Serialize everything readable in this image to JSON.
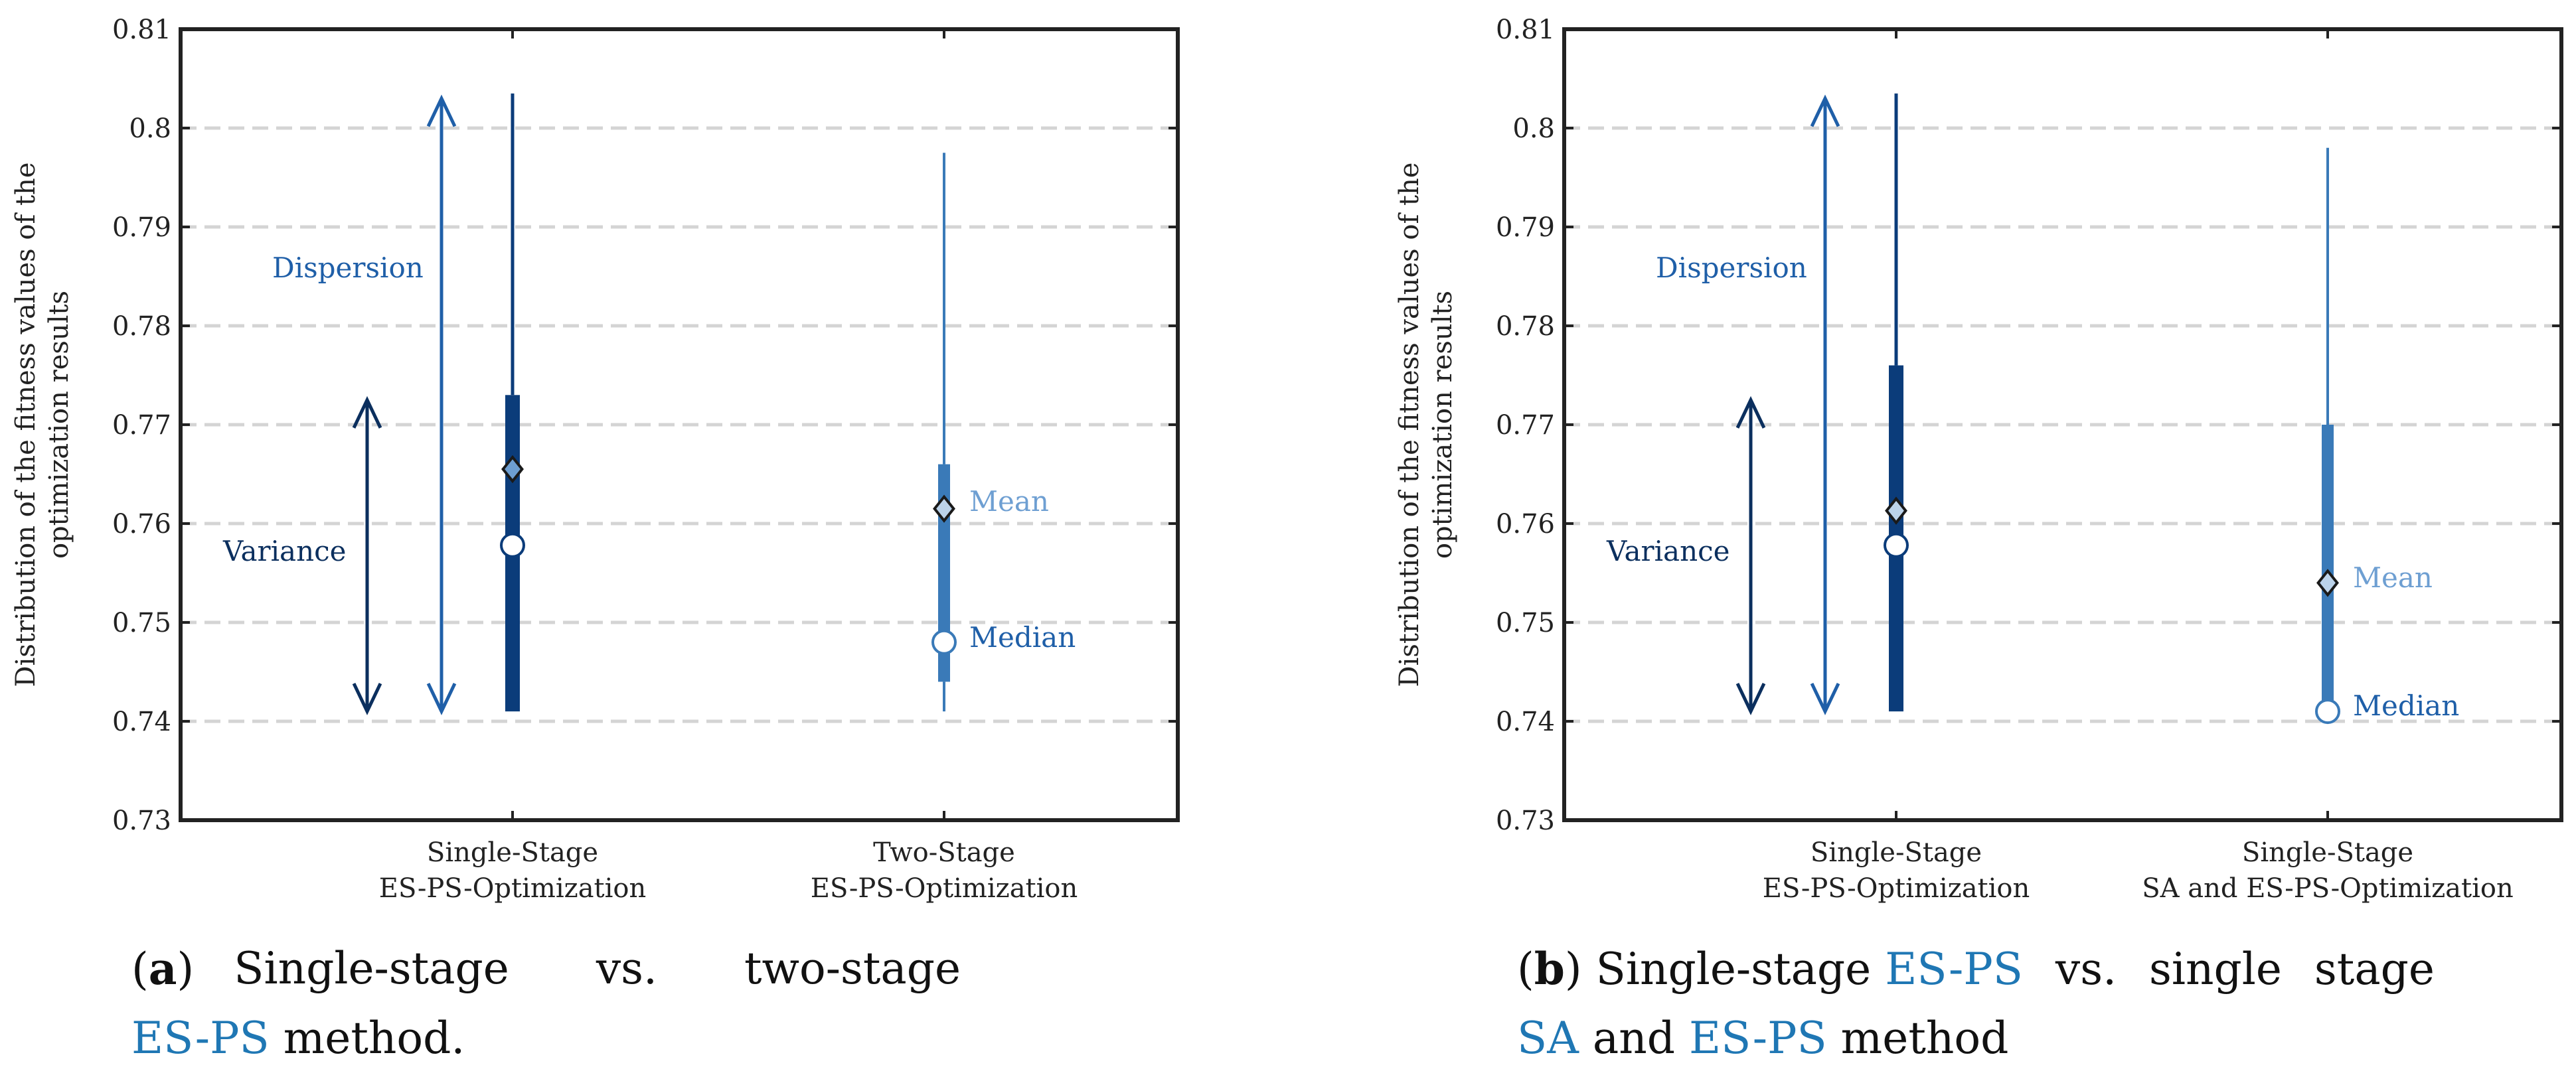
{
  "chart_data": [
    {
      "type": "boxplot",
      "panel": "a",
      "ylabel": [
        "Distribution of the fitness values of the",
        "optimization results"
      ],
      "ylim": [
        0.73,
        0.81
      ],
      "yticks": [
        "0.73",
        "0.74",
        "0.75",
        "0.76",
        "0.77",
        "0.78",
        "0.79",
        "0.8",
        "0.81"
      ],
      "ytick_values": [
        0.73,
        0.74,
        0.75,
        0.76,
        0.77,
        0.78,
        0.79,
        0.8,
        0.81
      ],
      "grid": "horizontal dashed",
      "categories": [
        [
          "Single-Stage",
          "ES-PS-Optimization"
        ],
        [
          "Two-Stage",
          "ES-PS-Optimization"
        ]
      ],
      "boxes": [
        {
          "whisker_low": 0.741,
          "q1": 0.741,
          "q3": 0.773,
          "whisker_high": 0.8035,
          "median": 0.7578,
          "mean": 0.7655,
          "color": "#0b3c7a",
          "mean_color": "#6e9fd2"
        },
        {
          "whisker_low": 0.741,
          "q1": 0.744,
          "q3": 0.766,
          "whisker_high": 0.7975,
          "median": 0.748,
          "mean": 0.7615,
          "color": "#3a7ab8",
          "mean_color": "#bcd3ea"
        }
      ],
      "annotations": {
        "dispersion": {
          "label": "Dispersion",
          "from": 0.741,
          "to": 0.803
        },
        "variance": {
          "label": "Variance",
          "from": 0.741,
          "to": 0.7725
        },
        "mean_label": "Mean",
        "median_label": "Median"
      }
    },
    {
      "type": "boxplot",
      "panel": "b",
      "ylabel": [
        "Distribution of the fitness values of the",
        "optimization results"
      ],
      "ylim": [
        0.73,
        0.81
      ],
      "yticks": [
        "0.73",
        "0.74",
        "0.75",
        "0.76",
        "0.77",
        "0.78",
        "0.79",
        "0.8",
        "0.81"
      ],
      "ytick_values": [
        0.73,
        0.74,
        0.75,
        0.76,
        0.77,
        0.78,
        0.79,
        0.8,
        0.81
      ],
      "grid": "horizontal dashed",
      "categories": [
        [
          "Single-Stage",
          "ES-PS-Optimization"
        ],
        [
          "Single-Stage",
          "SA and ES-PS-Optimization"
        ]
      ],
      "boxes": [
        {
          "whisker_low": 0.741,
          "q1": 0.741,
          "q3": 0.776,
          "whisker_high": 0.8035,
          "median": 0.7578,
          "mean": 0.7613,
          "color": "#0b3c7a",
          "mean_color": "#bcd3ea"
        },
        {
          "whisker_low": 0.741,
          "q1": 0.741,
          "q3": 0.77,
          "whisker_high": 0.798,
          "median": 0.741,
          "mean": 0.754,
          "color": "#3a7ab8",
          "mean_color": "#bcd3ea"
        }
      ],
      "annotations": {
        "dispersion": {
          "label": "Dispersion",
          "from": 0.741,
          "to": 0.803
        },
        "variance": {
          "label": "Variance",
          "from": 0.741,
          "to": 0.7725
        },
        "mean_label": "Mean",
        "median_label": "Median"
      }
    }
  ],
  "colors": {
    "dark_blue": "#0b3c7a",
    "mid_blue": "#1f5fa8",
    "light_blue": "#6e9fd2",
    "text_blue": "#1f77b4"
  },
  "captions": {
    "a": {
      "tag": "a",
      "line1_text": "Single-stage vs. two-stage",
      "line2_acronym": "ES-PS",
      "line2_rest": " method."
    },
    "b": {
      "tag": "b",
      "line1_pre": "Single-stage ",
      "line1_acronym": "ES-PS",
      "line1_post": " vs. single stage",
      "line2_acronym1": "SA",
      "line2_mid": " and ",
      "line2_acronym2": "ES-PS",
      "line2_rest": " method"
    }
  }
}
